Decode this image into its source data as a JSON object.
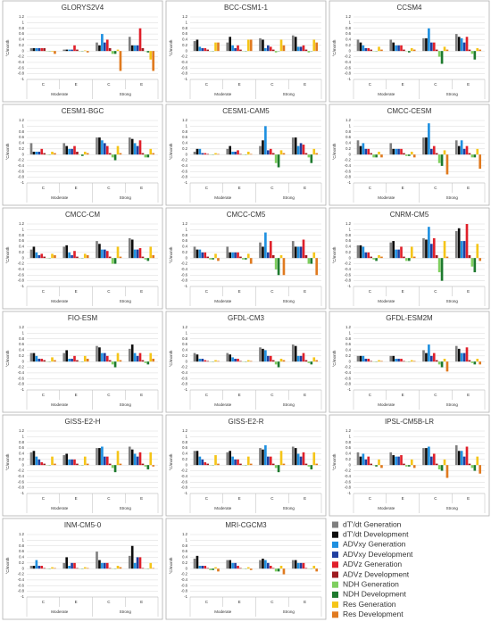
{
  "y_label": "°C/month",
  "ylim": [
    -1,
    1.2
  ],
  "yticks": [
    -1,
    -0.8,
    -0.6,
    -0.4,
    -0.2,
    0,
    0.2,
    0.4,
    0.6,
    0.8,
    1,
    1.2
  ],
  "categories": [
    "C",
    "E",
    "C",
    "E"
  ],
  "groups": [
    "Moderate",
    "Strong"
  ],
  "series": [
    {
      "name": "dT'/dt Generation",
      "color": "#7f7f7f"
    },
    {
      "name": "dT'/dt Development",
      "color": "#0d0d0d"
    },
    {
      "name": "ADVxy Generation",
      "color": "#1e90e0"
    },
    {
      "name": "ADVxy Development",
      "color": "#1f3fa0"
    },
    {
      "name": "ADVz Generation",
      "color": "#e0202a"
    },
    {
      "name": "ADVz Development",
      "color": "#9e1b20"
    },
    {
      "name": "NDH Generation",
      "color": "#7fcf5f"
    },
    {
      "name": "NDH Development",
      "color": "#1e7a2e"
    },
    {
      "name": "Res Generation",
      "color": "#f5c518"
    },
    {
      "name": "Res Development",
      "color": "#e07a1f"
    }
  ],
  "chart_data": [
    {
      "type": "bar",
      "title": "GLORYS2V4",
      "values": [
        [
          0.1,
          0.1,
          0.1,
          0.1,
          0.1,
          0.1,
          0,
          0,
          -0.02,
          -0.1
        ],
        [
          0.05,
          0.05,
          0.05,
          0.05,
          0.2,
          0.05,
          0,
          0,
          0.02,
          -0.05
        ],
        [
          0.3,
          0.2,
          0.6,
          0.3,
          0.4,
          0.1,
          -0.1,
          -0.1,
          0.05,
          -0.7
        ],
        [
          0.5,
          0.2,
          0.2,
          0.2,
          0.8,
          0.1,
          0,
          -0.05,
          -0.3,
          -0.7
        ]
      ]
    },
    {
      "type": "bar",
      "title": "BCC-CSM1-1",
      "values": [
        [
          0.35,
          0.4,
          0.15,
          0.1,
          0.1,
          0.05,
          0,
          0,
          0.3,
          0.3
        ],
        [
          0.3,
          0.5,
          0.2,
          0.1,
          0.2,
          0.05,
          0,
          0,
          0.4,
          0.4
        ],
        [
          0.45,
          0.4,
          0.1,
          0.2,
          0.15,
          0.05,
          -0.05,
          0,
          0.4,
          0.2
        ],
        [
          0.55,
          0.5,
          0.15,
          0.15,
          0.2,
          0.05,
          -0.05,
          0,
          0.4,
          0.3
        ]
      ]
    },
    {
      "type": "bar",
      "title": "CCSM4",
      "values": [
        [
          0.4,
          0.3,
          0.2,
          0.1,
          0.1,
          0.05,
          0,
          0,
          0.15,
          0.05
        ],
        [
          0.4,
          0.3,
          0.2,
          0.2,
          0.2,
          0.05,
          0,
          -0.05,
          0.1,
          0.05
        ],
        [
          0.45,
          0.45,
          0.8,
          0.3,
          0.3,
          0.05,
          -0.2,
          -0.45,
          0.15,
          0.05
        ],
        [
          0.6,
          0.5,
          0.45,
          0.3,
          0.5,
          0.05,
          -0.1,
          -0.3,
          0.1,
          0.05
        ]
      ]
    },
    {
      "type": "bar",
      "title": "CESM1-BGC",
      "values": [
        [
          0.4,
          0.1,
          0.1,
          0.1,
          0.2,
          0.05,
          0,
          0,
          0.1,
          0.05
        ],
        [
          0.4,
          0.3,
          0.2,
          0.2,
          0.3,
          0.1,
          0,
          -0.05,
          0.1,
          0.05
        ],
        [
          0.6,
          0.6,
          0.5,
          0.4,
          0.3,
          0.05,
          -0.1,
          -0.2,
          0.3,
          0.05
        ],
        [
          0.6,
          0.55,
          0.4,
          0.3,
          0.5,
          0.05,
          -0.1,
          -0.1,
          0.2,
          0.05
        ]
      ]
    },
    {
      "type": "bar",
      "title": "CESM1-CAM5",
      "values": [
        [
          0.1,
          0.2,
          0.2,
          0.05,
          0.05,
          0.02,
          0,
          0,
          0.05,
          0.02
        ],
        [
          0.2,
          0.3,
          0.1,
          0.1,
          0.15,
          0.02,
          0,
          0,
          0.1,
          0.02
        ],
        [
          0.3,
          0.5,
          1.0,
          0.15,
          0.2,
          0.05,
          -0.3,
          -0.45,
          0.15,
          0.05
        ],
        [
          0.6,
          0.6,
          0.3,
          0.4,
          0.35,
          0.05,
          -0.1,
          -0.3,
          0.2,
          0.05
        ]
      ]
    },
    {
      "type": "bar",
      "title": "CMCC-CESM",
      "values": [
        [
          0.5,
          0.3,
          0.4,
          0.2,
          0.2,
          0.05,
          -0.1,
          -0.1,
          0.1,
          -0.1
        ],
        [
          0.4,
          0.2,
          0.2,
          0.2,
          0.2,
          0.05,
          -0.05,
          -0.05,
          0.1,
          -0.1
        ],
        [
          0.6,
          0.6,
          1.1,
          0.2,
          0.3,
          0.05,
          -0.3,
          -0.4,
          0.15,
          -0.7
        ],
        [
          0.5,
          0.3,
          0.5,
          0.2,
          0.3,
          0.05,
          -0.1,
          -0.1,
          0.2,
          -0.5
        ]
      ]
    },
    {
      "type": "bar",
      "title": "CMCC-CM",
      "values": [
        [
          0.3,
          0.4,
          0.2,
          0.1,
          0.15,
          0.05,
          0,
          0,
          0.15,
          0.1
        ],
        [
          0.4,
          0.45,
          0.2,
          0.1,
          0.25,
          0.05,
          0,
          0,
          0.15,
          0.1
        ],
        [
          0.6,
          0.5,
          0.3,
          0.3,
          0.25,
          0.05,
          -0.2,
          -0.2,
          0.4,
          0.05
        ],
        [
          0.7,
          0.65,
          0.3,
          0.3,
          0.35,
          0.05,
          -0.05,
          -0.1,
          0.4,
          0.1
        ]
      ]
    },
    {
      "type": "bar",
      "title": "CMCC-CM5",
      "values": [
        [
          0.4,
          0.3,
          0.3,
          0.2,
          0.2,
          0.05,
          -0.05,
          -0.05,
          0.15,
          -0.1
        ],
        [
          0.4,
          0.2,
          0.2,
          0.2,
          0.2,
          0.05,
          -0.05,
          -0.05,
          0.15,
          -0.2
        ],
        [
          0.55,
          0.4,
          0.9,
          0.2,
          0.6,
          0.1,
          -0.4,
          -0.6,
          0.1,
          -0.6
        ],
        [
          0.6,
          0.4,
          0.4,
          0.4,
          0.65,
          0.1,
          -0.2,
          -0.2,
          0.2,
          -0.6
        ]
      ]
    },
    {
      "type": "bar",
      "title": "CNRM-CM5",
      "values": [
        [
          0.45,
          0.45,
          0.4,
          0.2,
          0.2,
          0.05,
          -0.05,
          -0.1,
          0.1,
          0.05
        ],
        [
          0.55,
          0.6,
          0.3,
          0.3,
          0.4,
          0.05,
          -0.1,
          -0.1,
          0.4,
          0.05
        ],
        [
          0.7,
          0.65,
          1.1,
          0.5,
          0.7,
          0.1,
          -0.5,
          -0.8,
          0.6,
          0.05
        ],
        [
          0.95,
          1.05,
          0.6,
          0.6,
          1.2,
          0.1,
          -0.3,
          -0.5,
          0.5,
          -0.1
        ]
      ]
    },
    {
      "type": "bar",
      "title": "FIO-ESM",
      "values": [
        [
          0.3,
          0.3,
          0.2,
          0.1,
          0.1,
          0.05,
          0,
          0,
          0.15,
          0.05
        ],
        [
          0.3,
          0.4,
          0.1,
          0.1,
          0.2,
          0.05,
          0,
          0,
          0.2,
          0.1
        ],
        [
          0.55,
          0.5,
          0.3,
          0.3,
          0.2,
          0.05,
          -0.1,
          -0.2,
          0.3,
          0.05
        ],
        [
          0.45,
          0.6,
          0.3,
          0.2,
          0.3,
          0.05,
          -0.05,
          -0.1,
          0.3,
          0.1
        ]
      ]
    },
    {
      "type": "bar",
      "title": "GFDL-CM3",
      "values": [
        [
          0.3,
          0.25,
          0.1,
          0.1,
          0.05,
          0.02,
          0,
          0,
          0.05,
          0.02
        ],
        [
          0.3,
          0.25,
          0.15,
          0.1,
          0.1,
          0.02,
          0,
          0,
          0.05,
          0.02
        ],
        [
          0.5,
          0.45,
          0.4,
          0.2,
          0.2,
          0.05,
          -0.1,
          -0.2,
          0.1,
          0.05
        ],
        [
          0.6,
          0.55,
          0.2,
          0.2,
          0.3,
          0.05,
          -0.05,
          -0.1,
          0.15,
          0.05
        ]
      ]
    },
    {
      "type": "bar",
      "title": "GFDL-ESM2M",
      "values": [
        [
          0.2,
          0.2,
          0.2,
          0.1,
          0.1,
          0.02,
          0,
          0,
          0.05,
          0.02
        ],
        [
          0.2,
          0.2,
          0.1,
          0.1,
          0.1,
          0.02,
          0,
          0,
          0.05,
          0.02
        ],
        [
          0.4,
          0.3,
          0.6,
          0.2,
          0.3,
          0.05,
          -0.1,
          -0.2,
          0.1,
          -0.35
        ],
        [
          0.55,
          0.45,
          0.3,
          0.3,
          0.5,
          0.05,
          -0.05,
          -0.1,
          0.1,
          -0.1
        ]
      ]
    },
    {
      "type": "bar",
      "title": "GISS-E2-H",
      "values": [
        [
          0.45,
          0.5,
          0.3,
          0.2,
          0.1,
          0.05,
          0,
          0,
          0.3,
          0.05
        ],
        [
          0.35,
          0.4,
          0.2,
          0.2,
          0.2,
          0.05,
          0,
          0,
          0.3,
          0.05
        ],
        [
          0.6,
          0.6,
          0.65,
          0.3,
          0.3,
          0.05,
          -0.1,
          -0.25,
          0.5,
          0.05
        ],
        [
          0.65,
          0.55,
          0.4,
          0.3,
          0.45,
          0.05,
          -0.05,
          -0.15,
          0.45,
          -0.05
        ]
      ]
    },
    {
      "type": "bar",
      "title": "GISS-E2-R",
      "values": [
        [
          0.5,
          0.5,
          0.3,
          0.2,
          0.1,
          0.05,
          0,
          0,
          0.35,
          0.05
        ],
        [
          0.45,
          0.5,
          0.3,
          0.2,
          0.2,
          0.05,
          0,
          0,
          0.3,
          0.05
        ],
        [
          0.6,
          0.55,
          0.7,
          0.3,
          0.3,
          0.05,
          -0.1,
          -0.25,
          0.5,
          0.05
        ],
        [
          0.65,
          0.6,
          0.4,
          0.3,
          0.45,
          0.05,
          -0.05,
          -0.15,
          0.45,
          0.05
        ]
      ]
    },
    {
      "type": "bar",
      "title": "IPSL-CM5B-LR",
      "values": [
        [
          0.45,
          0.3,
          0.4,
          0.2,
          0.3,
          0.05,
          0,
          -0.05,
          0.2,
          -0.1
        ],
        [
          0.45,
          0.35,
          0.3,
          0.3,
          0.35,
          0.05,
          -0.05,
          -0.05,
          0.2,
          -0.1
        ],
        [
          0.6,
          0.6,
          0.65,
          0.3,
          0.4,
          0.05,
          -0.15,
          -0.2,
          0.2,
          -0.45
        ],
        [
          0.7,
          0.5,
          0.5,
          0.3,
          0.65,
          0.05,
          -0.1,
          -0.2,
          0.3,
          -0.3
        ]
      ]
    },
    {
      "type": "bar",
      "title": "INM-CM5-0",
      "values": [
        [
          0.1,
          0.1,
          0.3,
          0.1,
          0.1,
          0.02,
          0,
          0,
          0.05,
          0.02
        ],
        [
          0.2,
          0.4,
          0.1,
          0.2,
          0.2,
          0.02,
          0,
          0,
          0.05,
          0.02
        ],
        [
          0.6,
          0.3,
          0.2,
          0.2,
          0.2,
          0.02,
          0,
          0,
          0.1,
          0.05
        ],
        [
          0.45,
          0.8,
          0.2,
          0.4,
          0.4,
          0.02,
          0,
          0,
          0.2,
          0.02
        ]
      ]
    },
    {
      "type": "bar",
      "title": "MRI-CGCM3",
      "values": [
        [
          0.35,
          0.45,
          0.1,
          0.1,
          0.1,
          0.02,
          -0.05,
          -0.05,
          0.05,
          -0.1
        ],
        [
          0.3,
          0.3,
          0.2,
          0.2,
          0.1,
          0.02,
          0,
          0,
          0.05,
          -0.05
        ],
        [
          0.3,
          0.35,
          0.3,
          0.2,
          0.1,
          0.02,
          -0.1,
          -0.1,
          0.1,
          -0.2
        ],
        [
          0.3,
          0.3,
          0.2,
          0.2,
          0.2,
          0.02,
          0,
          0,
          0.1,
          -0.1
        ]
      ]
    }
  ]
}
